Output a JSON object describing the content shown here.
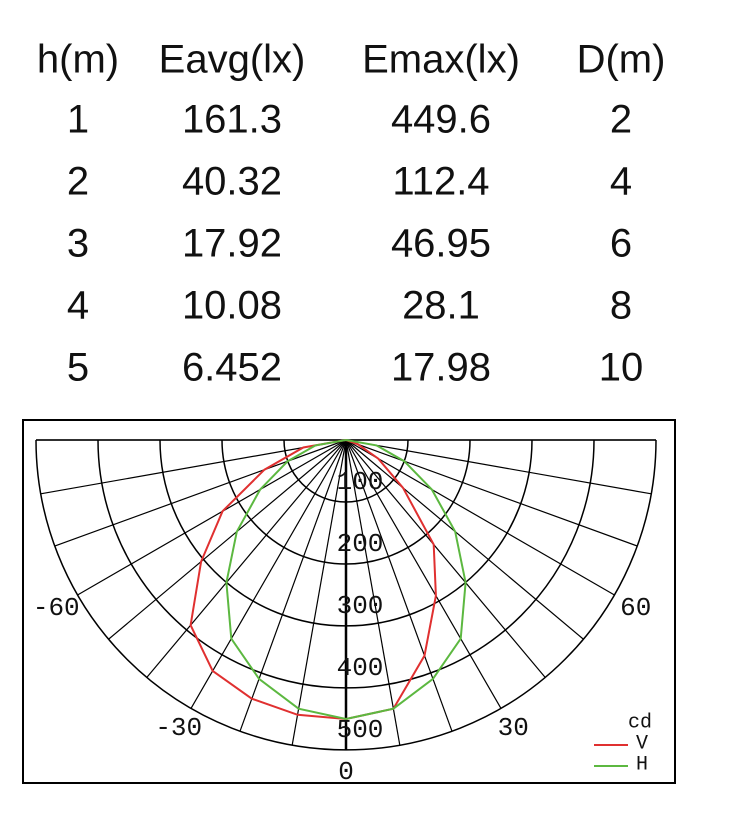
{
  "table": {
    "header": [
      "h(m)",
      "Eavg(lx)",
      "Emax(lx)",
      "D(m)"
    ],
    "rows": [
      [
        "1",
        "161.3",
        "449.6",
        "2"
      ],
      [
        "2",
        "40.32",
        "112.4",
        "4"
      ],
      [
        "3",
        "17.92",
        "46.95",
        "6"
      ],
      [
        "4",
        "10.08",
        "28.1",
        "8"
      ],
      [
        "5",
        "6.452",
        "17.98",
        "10"
      ]
    ]
  },
  "chart_data": {
    "type": "polar",
    "unit": "cd",
    "x": [
      -90,
      -80,
      -70,
      -60,
      -50,
      -40,
      -30,
      -20,
      -10,
      0,
      10,
      20,
      30,
      40,
      50,
      60,
      70,
      80,
      90
    ],
    "xticks": [
      -60,
      -30,
      0,
      30,
      60
    ],
    "rlim": [
      0,
      500
    ],
    "rticks": [
      100,
      200,
      300,
      400,
      500
    ],
    "series": [
      {
        "name": "V",
        "color": "#e03030",
        "values": [
          0,
          70,
          140,
          230,
          305,
          390,
          430,
          444,
          450,
          450,
          440,
          370,
          290,
          220,
          120,
          60,
          20,
          0,
          0
        ]
      },
      {
        "name": "H",
        "color": "#5cb840",
        "values": [
          0,
          50,
          100,
          160,
          230,
          300,
          370,
          410,
          440,
          450,
          440,
          410,
          370,
          300,
          230,
          160,
          100,
          50,
          0
        ]
      }
    ]
  }
}
